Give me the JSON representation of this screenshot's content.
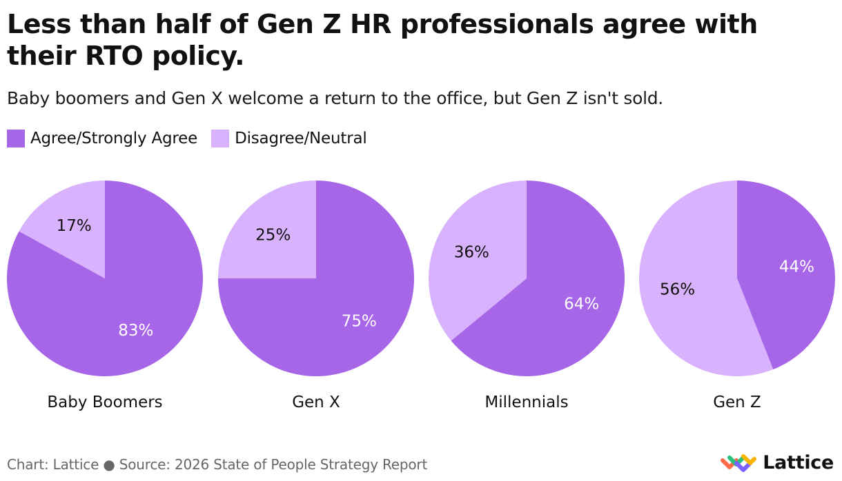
{
  "colors": {
    "agree": "#a765e8",
    "disagree": "#d8b2fc",
    "text_dark": "#111111",
    "text_light": "#ffffff"
  },
  "legend": [
    "Agree/Strongly Agree",
    "Disagree/Neutral"
  ],
  "footer": {
    "credit": "Chart: Lattice ● Source: 2026 State of People Strategy Report"
  },
  "brand": {
    "name": "Lattice",
    "logo_icon": "lattice-logo-icon"
  },
  "chart_data": {
    "type": "pie",
    "title": "Less than half of Gen Z HR professionals agree with their RTO policy.",
    "subtitle": "Baby boomers and Gen X welcome a return to the office, but Gen Z isn't sold.",
    "legend_position": "top-left",
    "series_names": [
      "Agree/Strongly Agree",
      "Disagree/Neutral"
    ],
    "pies": [
      {
        "label": "Baby Boomers",
        "values": [
          83,
          17
        ],
        "value_labels": [
          "83%",
          "17%"
        ]
      },
      {
        "label": "Gen X",
        "values": [
          75,
          25
        ],
        "value_labels": [
          "75%",
          "25%"
        ]
      },
      {
        "label": "Millennials",
        "values": [
          64,
          36
        ],
        "value_labels": [
          "64%",
          "36%"
        ]
      },
      {
        "label": "Gen Z",
        "values": [
          44,
          56
        ],
        "value_labels": [
          "44%",
          "56%"
        ]
      }
    ]
  }
}
